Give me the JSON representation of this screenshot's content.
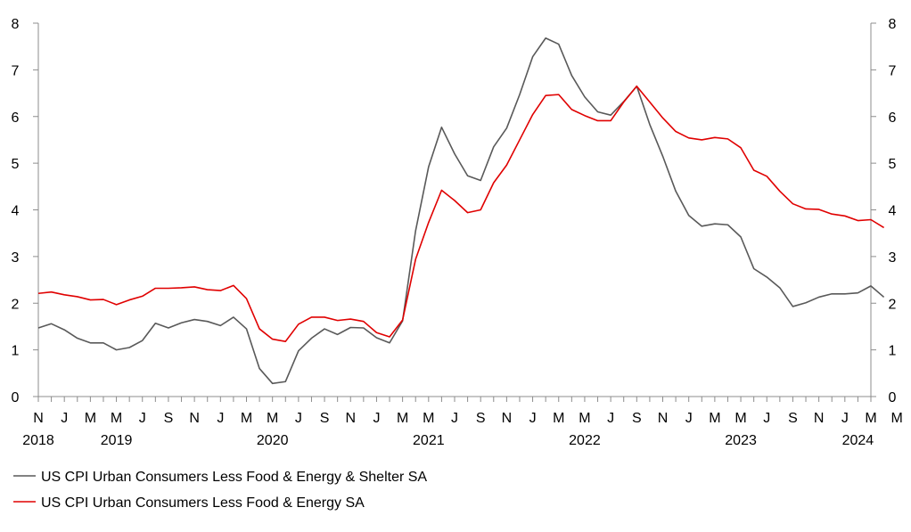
{
  "chart_data": {
    "type": "line",
    "title": "",
    "xlabel": "",
    "ylabel": "",
    "ylim": [
      0,
      8
    ],
    "y_ticks": [
      0,
      1,
      2,
      3,
      4,
      5,
      6,
      7,
      8
    ],
    "y_axis_right_mirror": true,
    "grid": false,
    "legend_position": "bottom-left",
    "x_start": "2018-11",
    "x_end": "2024-03",
    "x_month_labels": [
      "N",
      "J",
      "M",
      "M",
      "J",
      "S",
      "N",
      "J",
      "M",
      "M",
      "J",
      "S",
      "N",
      "J",
      "M",
      "M",
      "J",
      "S",
      "N",
      "J",
      "M",
      "M",
      "J",
      "S",
      "N",
      "J",
      "M",
      "M",
      "J",
      "S",
      "N",
      "J",
      "M",
      "M"
    ],
    "x_year_labels": [
      {
        "label": "2018",
        "month": "2018-11"
      },
      {
        "label": "2019",
        "month": "2019-05"
      },
      {
        "label": "2020",
        "month": "2020-05"
      },
      {
        "label": "2021",
        "month": "2021-05"
      },
      {
        "label": "2022",
        "month": "2022-05"
      },
      {
        "label": "2023",
        "month": "2023-05"
      },
      {
        "label": "2024",
        "month": "2024-02"
      }
    ],
    "series": [
      {
        "name": "US CPI Urban Consumers Less Food & Energy & Shelter SA",
        "color": "#595959",
        "values": [
          1.47,
          1.56,
          1.43,
          1.25,
          1.15,
          1.15,
          1.0,
          1.05,
          1.2,
          1.57,
          1.47,
          1.58,
          1.65,
          1.61,
          1.52,
          1.7,
          1.45,
          0.6,
          0.28,
          0.32,
          0.98,
          1.25,
          1.45,
          1.33,
          1.48,
          1.47,
          1.26,
          1.15,
          1.62,
          3.55,
          4.92,
          5.77,
          5.2,
          4.73,
          4.63,
          5.35,
          5.75,
          6.47,
          7.28,
          7.68,
          7.55,
          6.88,
          6.42,
          6.1,
          6.03,
          6.32,
          6.65,
          5.83,
          5.15,
          4.4,
          3.88,
          3.65,
          3.7,
          3.68,
          3.42,
          2.74,
          2.56,
          2.33,
          1.93,
          2.01,
          2.13,
          2.2,
          2.2,
          2.22,
          2.37,
          2.13
        ]
      },
      {
        "name": "US CPI Urban Consumers Less Food & Energy SA",
        "color": "#e00000",
        "values": [
          2.21,
          2.24,
          2.18,
          2.14,
          2.07,
          2.08,
          1.97,
          2.07,
          2.15,
          2.32,
          2.32,
          2.33,
          2.35,
          2.29,
          2.27,
          2.38,
          2.1,
          1.45,
          1.23,
          1.18,
          1.55,
          1.7,
          1.7,
          1.63,
          1.66,
          1.61,
          1.37,
          1.28,
          1.64,
          2.94,
          3.73,
          4.42,
          4.2,
          3.94,
          4.0,
          4.58,
          4.96,
          5.5,
          6.04,
          6.45,
          6.47,
          6.15,
          6.02,
          5.91,
          5.91,
          6.31,
          6.65,
          6.31,
          5.97,
          5.68,
          5.54,
          5.5,
          5.55,
          5.52,
          5.33,
          4.85,
          4.72,
          4.4,
          4.13,
          4.02,
          4.01,
          3.91,
          3.87,
          3.77,
          3.79,
          3.62
        ]
      }
    ]
  }
}
